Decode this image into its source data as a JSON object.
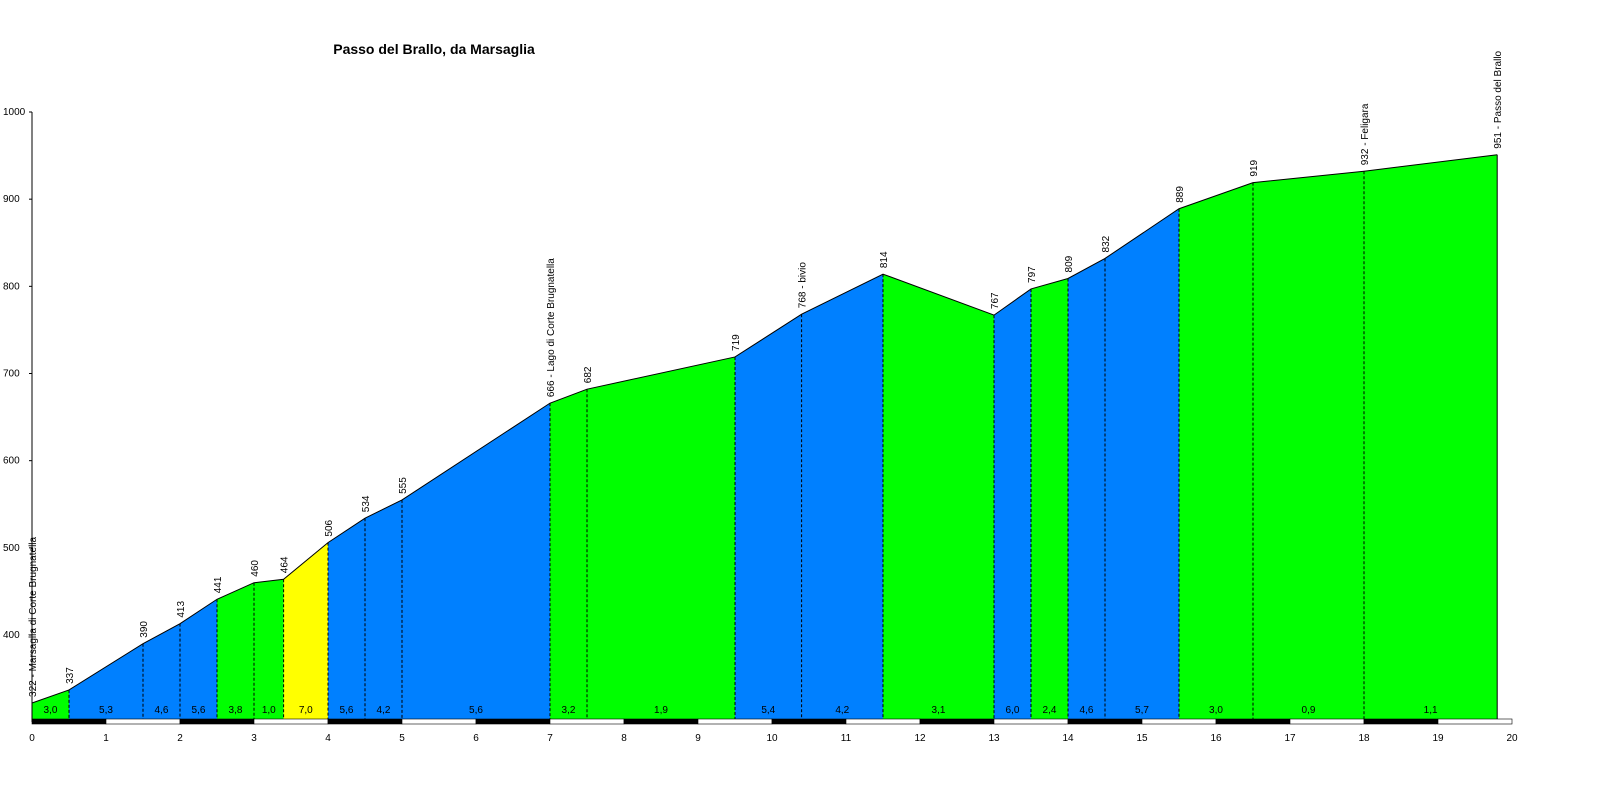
{
  "chart_data": {
    "type": "area",
    "title": "Passo del Brallo, da Marsaglia",
    "xlabel": "",
    "ylabel": "",
    "xlim": [
      0,
      20
    ],
    "ylim": [
      320,
      1000
    ],
    "x_ticks": [
      0,
      1,
      2,
      3,
      4,
      5,
      6,
      7,
      8,
      9,
      10,
      11,
      12,
      13,
      14,
      15,
      16,
      17,
      18,
      19,
      20
    ],
    "y_ticks": [
      400,
      500,
      600,
      700,
      800,
      900,
      1000
    ],
    "profile": [
      {
        "km": 0.0,
        "alt": 322,
        "label": "322 - Marsaglia di Corte Brugnatella"
      },
      {
        "km": 0.5,
        "alt": 337,
        "label": "337"
      },
      {
        "km": 1.5,
        "alt": 390,
        "label": "390"
      },
      {
        "km": 2.0,
        "alt": 413,
        "label": "413"
      },
      {
        "km": 2.5,
        "alt": 441,
        "label": "441"
      },
      {
        "km": 3.0,
        "alt": 460,
        "label": "460"
      },
      {
        "km": 3.4,
        "alt": 464,
        "label": "464"
      },
      {
        "km": 4.0,
        "alt": 506,
        "label": "506"
      },
      {
        "km": 4.5,
        "alt": 534,
        "label": "534"
      },
      {
        "km": 5.0,
        "alt": 555,
        "label": "555"
      },
      {
        "km": 7.0,
        "alt": 666,
        "label": "666 - Lago di Corte Brugnatella"
      },
      {
        "km": 7.5,
        "alt": 682,
        "label": "682"
      },
      {
        "km": 9.5,
        "alt": 719,
        "label": "719"
      },
      {
        "km": 10.4,
        "alt": 768,
        "label": "768 - bivio"
      },
      {
        "km": 11.5,
        "alt": 814,
        "label": "814"
      },
      {
        "km": 13.0,
        "alt": 767,
        "label": "767"
      },
      {
        "km": 13.5,
        "alt": 797,
        "label": "797"
      },
      {
        "km": 14.0,
        "alt": 809,
        "label": "809"
      },
      {
        "km": 14.5,
        "alt": 832,
        "label": "832"
      },
      {
        "km": 15.5,
        "alt": 889,
        "label": "889"
      },
      {
        "km": 16.5,
        "alt": 919,
        "label": "919"
      },
      {
        "km": 18.0,
        "alt": 932,
        "label": "932 - Feligara"
      },
      {
        "km": 19.8,
        "alt": 951,
        "label": "951 - Passo del Brallo"
      }
    ],
    "gradients": [
      "3,0",
      "5,3",
      "4,6",
      "5,6",
      "3,8",
      "1,0",
      "7,0",
      "5,6",
      "4,2",
      "5,6",
      "3,2",
      "1,9",
      "5,4",
      "4,2",
      "3,1",
      "6,0",
      "2,4",
      "4,6",
      "5,7",
      "3,0",
      "0,9",
      "1,1"
    ],
    "segment_colors": [
      "green",
      "blue",
      "blue",
      "blue",
      "green",
      "green",
      "yellow",
      "blue",
      "blue",
      "blue",
      "green",
      "green",
      "blue",
      "blue",
      "green",
      "blue",
      "green",
      "blue",
      "blue",
      "green",
      "green",
      "green"
    ],
    "colors": {
      "green": "#00ff00",
      "blue": "#0080ff",
      "yellow": "#ffff00"
    }
  }
}
